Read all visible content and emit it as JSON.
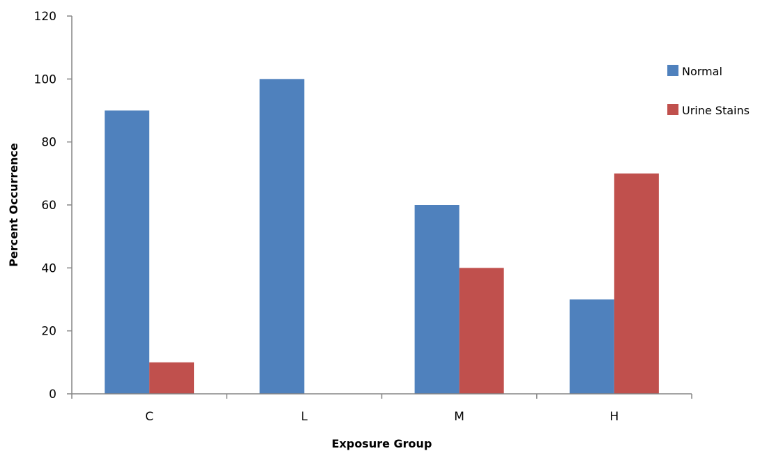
{
  "chart_data": {
    "type": "bar",
    "categories": [
      "C",
      "L",
      "M",
      "H"
    ],
    "series": [
      {
        "name": "Normal",
        "values": [
          90,
          100,
          60,
          30
        ],
        "color": "#4F81BD"
      },
      {
        "name": "Urine Stains",
        "values": [
          10,
          0,
          40,
          70
        ],
        "color": "#C0504D"
      }
    ],
    "xlabel": "Exposure Group",
    "ylabel": "Percent Occurrence",
    "ylim": [
      0,
      120
    ],
    "yticks": [
      0,
      20,
      40,
      60,
      80,
      100,
      120
    ],
    "grid": false,
    "legend_position": "right"
  }
}
